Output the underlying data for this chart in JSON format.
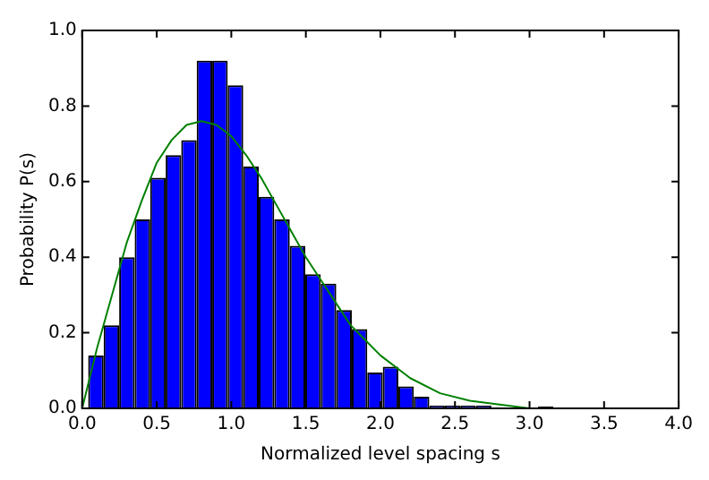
{
  "chart_data": {
    "type": "histogram",
    "xlabel": "Normalized level spacing s",
    "ylabel": "Probability P(s)",
    "bins": [
      0.04,
      0.144,
      0.248,
      0.352,
      0.456,
      0.56,
      0.664,
      0.768,
      0.872,
      0.976,
      1.08,
      1.184,
      1.288,
      1.392,
      1.496,
      1.6,
      1.704,
      1.808,
      1.912,
      2.016,
      2.12,
      2.224,
      2.328,
      2.432,
      2.536,
      2.64,
      2.744,
      2.848,
      2.952,
      3.056,
      3.16
    ],
    "values": [
      0.14,
      0.22,
      0.4,
      0.5,
      0.61,
      0.67,
      0.71,
      0.92,
      0.92,
      0.855,
      0.64,
      0.56,
      0.5,
      0.43,
      0.355,
      0.33,
      0.26,
      0.21,
      0.095,
      0.11,
      0.058,
      0.031,
      0.007,
      0.007,
      0.007,
      0.007,
      0,
      0,
      0,
      0.005
    ],
    "color": "#0000ff",
    "series": [
      {
        "type": "line",
        "color": "#008000",
        "x": [
          0,
          0.1,
          0.2,
          0.3,
          0.4,
          0.5,
          0.6,
          0.7,
          0.8,
          0.9,
          1.0,
          1.1,
          1.2,
          1.3,
          1.4,
          1.5,
          1.6,
          1.7,
          1.8,
          1.9,
          2.0,
          2.2,
          2.4,
          2.6,
          2.8,
          3.0
        ],
        "values": [
          0,
          0.16,
          0.3,
          0.44,
          0.55,
          0.65,
          0.71,
          0.75,
          0.76,
          0.75,
          0.72,
          0.67,
          0.61,
          0.54,
          0.47,
          0.4,
          0.34,
          0.28,
          0.22,
          0.18,
          0.14,
          0.08,
          0.04,
          0.02,
          0.01,
          0
        ]
      }
    ],
    "xlim": [
      0,
      4
    ],
    "xticks": [
      {
        "value": 0,
        "label": "0.0"
      },
      {
        "value": 0.5,
        "label": "0.5"
      },
      {
        "value": 1,
        "label": "1.0"
      },
      {
        "value": 1.5,
        "label": "1.5"
      },
      {
        "value": 2,
        "label": "2.0"
      },
      {
        "value": 2.5,
        "label": "2.5"
      },
      {
        "value": 3,
        "label": "3.0"
      },
      {
        "value": 3.5,
        "label": "3.5"
      },
      {
        "value": 4,
        "label": "4.0"
      }
    ],
    "ylim": [
      0,
      1
    ],
    "yticks": [
      {
        "value": 0,
        "label": "0.0"
      },
      {
        "value": 0.2,
        "label": "0.2"
      },
      {
        "value": 0.4,
        "label": "0.4"
      },
      {
        "value": 0.6,
        "label": "0.6"
      },
      {
        "value": 0.8,
        "label": "0.8"
      },
      {
        "value": 1,
        "label": "1.0"
      }
    ],
    "grid": false,
    "legend": false
  }
}
